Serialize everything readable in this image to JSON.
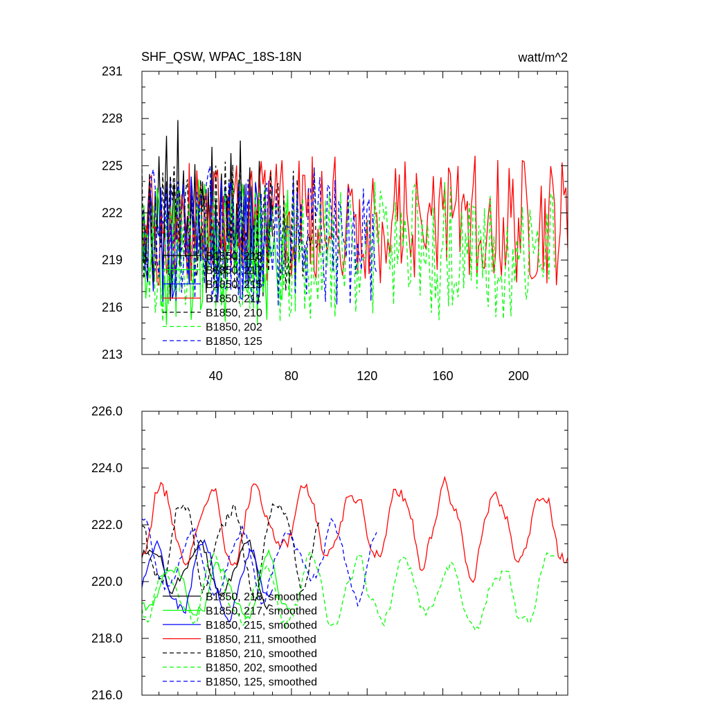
{
  "chart_data": [
    {
      "type": "line",
      "title": "SHF_QSW, WPAC_18S-18N",
      "units": "watt/m^2",
      "xlim": [
        1,
        226
      ],
      "ylim": [
        213,
        231
      ],
      "x_ticks": [
        "40",
        "80",
        "120",
        "160",
        "200"
      ],
      "y_ticks": [
        "213",
        "216",
        "219",
        "222",
        "225",
        "228",
        "231"
      ],
      "series": [
        {
          "name": "B1850, 218",
          "label": "B1850, 218",
          "color": "#000000",
          "dash": "solid",
          "length": 70,
          "mean": 220.5,
          "amp": 2.6,
          "seed": 11,
          "values": [
            220.1,
            222.3,
            218.7,
            221.9,
            224.2,
            219.5,
            217.1,
            223.4,
            220.8,
            225.6,
            221.2,
            218.4,
            222.7,
            226.9,
            219.8,
            216.4,
            221.5,
            223.9,
            220.3,
            227.9,
            218.6,
            222.1,
            224.7,
            219.2,
            221.8,
            217.5,
            223.3,
            220.6,
            225.1,
            218.9,
            222.4,
            219.7,
            224.0,
            221.3,
            216.9,
            223.6,
            220.2,
            226.2,
            219.0,
            222.8,
            218.3,
            221.7,
            224.5,
            220.9,
            217.8,
            223.1,
            219.6,
            225.8,
            221.0,
            218.1,
            222.6,
            220.4,
            226.6,
            219.3,
            223.8,
            217.4,
            221.6,
            224.9,
            220.0,
            218.8,
            222.2,
            219.9,
            225.3,
            221.4,
            216.7,
            223.0,
            220.7,
            219.1,
            222.9,
            220.5
          ]
        },
        {
          "name": "B1850, 217",
          "label": "B1850, 217",
          "color": "#00ff00",
          "dash": "solid",
          "length": 80,
          "mean": 219.5,
          "amp": 3.0,
          "seed": 23
        },
        {
          "name": "B1850, 215",
          "label": "B1850, 215",
          "color": "#0000ff",
          "dash": "solid",
          "length": 70,
          "mean": 220.0,
          "amp": 2.7,
          "seed": 37
        },
        {
          "name": "B1850, 211",
          "label": "B1850, 211",
          "color": "#ff0000",
          "dash": "solid",
          "length": 226,
          "mean": 221.5,
          "amp": 2.6,
          "seed": 41
        },
        {
          "name": "B1850, 210",
          "label": "B1850, 210",
          "color": "#000000",
          "dash": "dashed",
          "length": 95,
          "mean": 221.2,
          "amp": 2.6,
          "seed": 53
        },
        {
          "name": "B1850, 202",
          "label": "B1850, 202",
          "color": "#00ff00",
          "dash": "dashed",
          "length": 219,
          "mean": 219.5,
          "amp": 2.8,
          "seed": 67
        },
        {
          "name": "B1850, 125",
          "label": "B1850, 125",
          "color": "#0000ff",
          "dash": "dashed",
          "length": 125,
          "mean": 220.5,
          "amp": 2.8,
          "seed": 79
        }
      ]
    },
    {
      "type": "line",
      "title": "",
      "xlim": [
        1,
        226
      ],
      "ylim": [
        216.0,
        226.0
      ],
      "y_ticks": [
        "216.0",
        "218.0",
        "220.0",
        "222.0",
        "224.0",
        "226.0"
      ],
      "series": [
        {
          "name": "B1850, 218, smoothed",
          "label": "B1850, 218, smoothed",
          "color": "#000000",
          "dash": "solid",
          "length": 70,
          "mean": 220.3,
          "amp": 1.0,
          "seed": 13
        },
        {
          "name": "B1850, 217, smoothed",
          "label": "B1850, 217, smoothed",
          "color": "#00ff00",
          "dash": "solid",
          "length": 80,
          "mean": 219.7,
          "amp": 1.0,
          "seed": 29
        },
        {
          "name": "B1850, 215, smoothed",
          "label": "B1850, 215, smoothed",
          "color": "#0000ff",
          "dash": "solid",
          "length": 70,
          "mean": 220.0,
          "amp": 1.2,
          "seed": 31
        },
        {
          "name": "B1850, 211, smoothed",
          "label": "B1850, 211, smoothed",
          "color": "#ff0000",
          "dash": "solid",
          "length": 226,
          "mean": 222.0,
          "amp": 1.3,
          "seed": 43
        },
        {
          "name": "B1850, 210, smoothed",
          "label": "B1850, 210, smoothed",
          "color": "#000000",
          "dash": "dashed",
          "length": 95,
          "mean": 221.3,
          "amp": 1.5,
          "seed": 59
        },
        {
          "name": "B1850, 202, smoothed",
          "label": "B1850, 202, smoothed",
          "color": "#00ff00",
          "dash": "dashed",
          "length": 219,
          "mean": 219.6,
          "amp": 1.1,
          "seed": 61
        },
        {
          "name": "B1850, 125, smoothed",
          "label": "B1850, 125, smoothed",
          "color": "#0000ff",
          "dash": "dashed",
          "length": 125,
          "mean": 220.8,
          "amp": 1.2,
          "seed": 83
        }
      ]
    }
  ]
}
